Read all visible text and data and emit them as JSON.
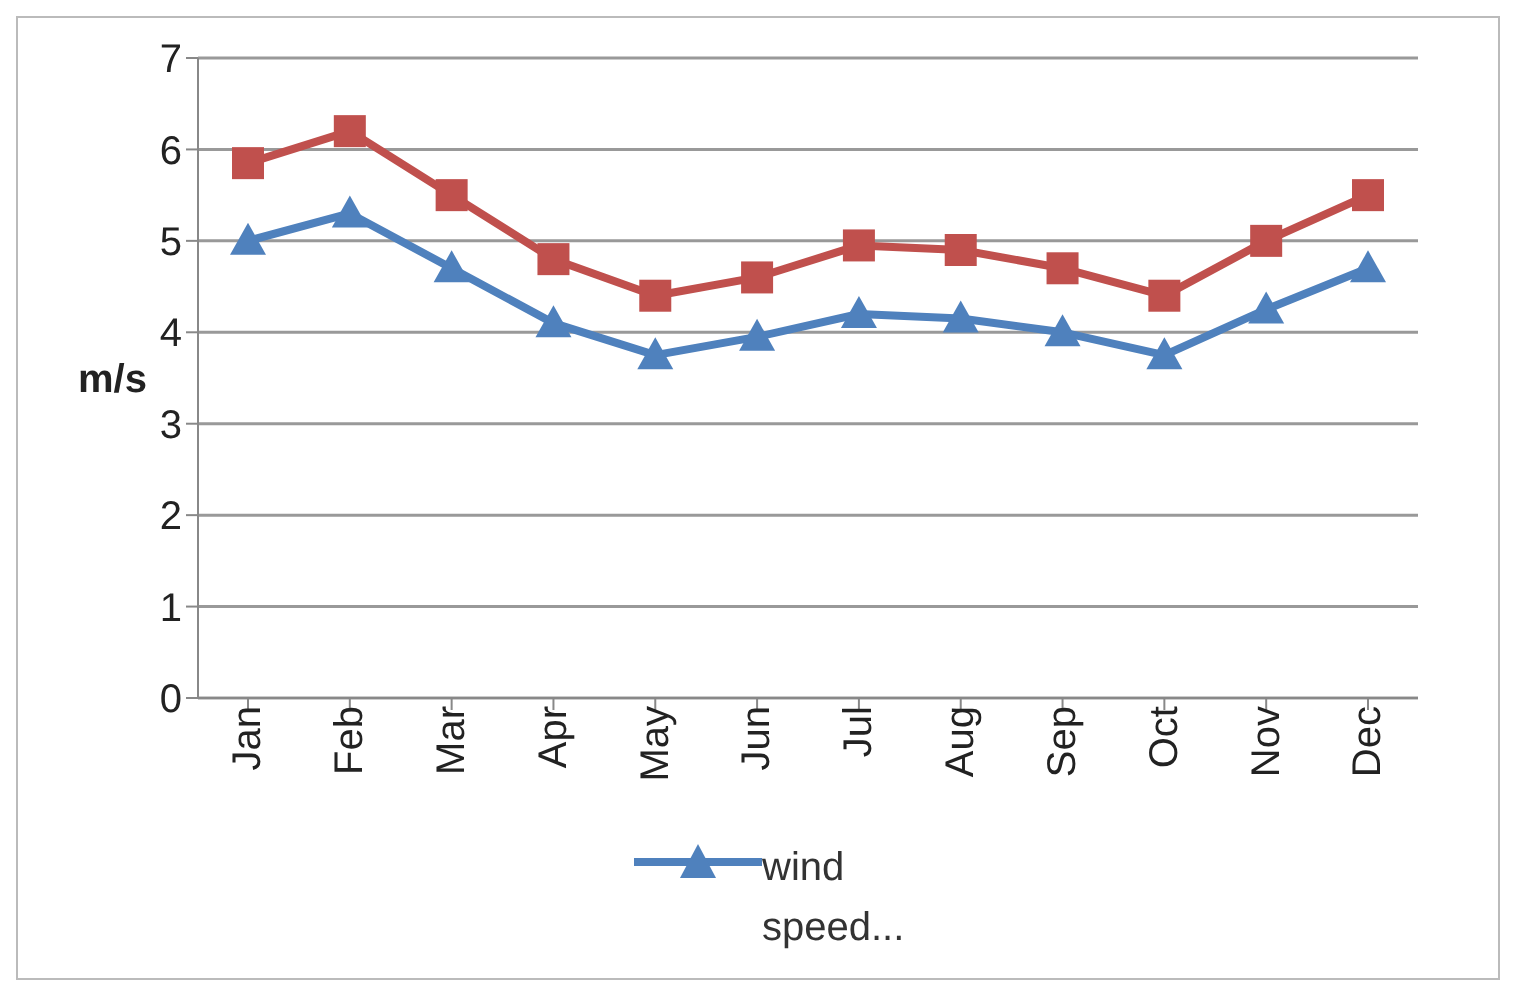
{
  "chart_data": {
    "type": "line",
    "ylabel": "m/s",
    "categories": [
      "Jan",
      "Feb",
      "Mar",
      "Apr",
      "May",
      "Jun",
      "Jul",
      "Aug",
      "Sep",
      "Oct",
      "Nov",
      "Dec"
    ],
    "series": [
      {
        "color": "#c0504d",
        "marker": "square",
        "values": [
          5.85,
          6.2,
          5.5,
          4.8,
          4.4,
          4.6,
          4.95,
          4.9,
          4.7,
          4.4,
          5.0,
          5.5
        ]
      },
      {
        "name": "wind speed...",
        "color": "#4f81bd",
        "marker": "triangle",
        "values": [
          5.0,
          5.3,
          4.7,
          4.1,
          3.75,
          3.95,
          4.2,
          4.15,
          4.0,
          3.75,
          4.25,
          4.7
        ]
      }
    ],
    "ylim": [
      0,
      7
    ],
    "yticks": [
      0,
      1,
      2,
      3,
      4,
      5,
      6,
      7
    ],
    "grid": "y",
    "legend": "bottom"
  }
}
